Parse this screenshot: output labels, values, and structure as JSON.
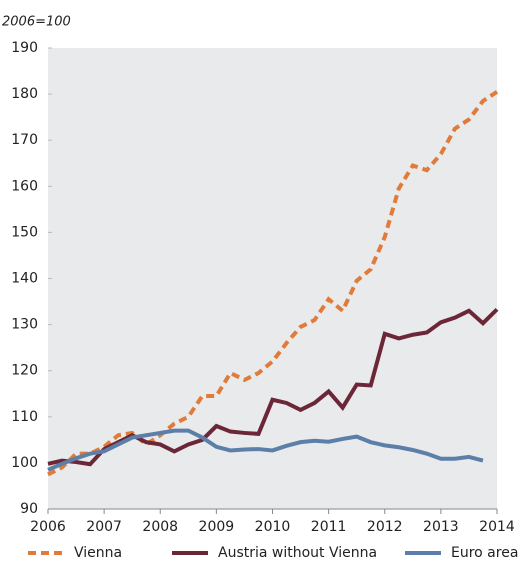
{
  "chart_data": {
    "type": "line",
    "subtitle": "2006=100",
    "x": [
      2006,
      2006.25,
      2006.5,
      2006.75,
      2007,
      2007.25,
      2007.5,
      2007.75,
      2008,
      2008.25,
      2008.5,
      2008.75,
      2009,
      2009.25,
      2009.5,
      2009.75,
      2010,
      2010.25,
      2010.5,
      2010.75,
      2011,
      2011.25,
      2011.5,
      2011.75,
      2012,
      2012.25,
      2012.5,
      2012.75,
      2013,
      2013.25,
      2013.5,
      2013.75,
      2014
    ],
    "series": [
      {
        "name": "Vienna",
        "color": "#e07b39",
        "dashed": true,
        "values": [
          97.5,
          99,
          102,
          102,
          103.5,
          106,
          106.5,
          104,
          106,
          108.5,
          110,
          114.5,
          114.5,
          119.5,
          118,
          119.5,
          122,
          126,
          129.5,
          131,
          135.5,
          133,
          139.5,
          142,
          149,
          159.5,
          164.5,
          163.5,
          167,
          172.5,
          174.5,
          178.5,
          180.5
        ]
      },
      {
        "name": "Austria without Vienna",
        "color": "#6b2737",
        "dashed": false,
        "values": [
          99.8,
          100.5,
          100.2,
          99.7,
          103,
          104.5,
          106,
          104.5,
          104,
          102.5,
          104,
          105,
          108,
          106.8,
          106.5,
          106.3,
          113.7,
          113,
          111.5,
          113,
          115.5,
          112,
          117,
          116.8,
          128,
          127,
          127.8,
          128.3,
          130.5,
          131.5,
          133,
          130.3,
          133.3
        ]
      },
      {
        "name": "Euro area",
        "color": "#5b7fa8",
        "dashed": false,
        "values": [
          98.5,
          99.8,
          101,
          102,
          102.5,
          104,
          105.5,
          106,
          106.5,
          107,
          107,
          105.5,
          103.5,
          102.7,
          102.9,
          103,
          102.7,
          103.7,
          104.5,
          104.8,
          104.6,
          105.2,
          105.7,
          104.5,
          103.8,
          103.4,
          102.8,
          102,
          100.9,
          100.9,
          101.3,
          100.5,
          null
        ]
      }
    ],
    "xlim": [
      2006,
      2014
    ],
    "xticks": [
      2006,
      2007,
      2008,
      2009,
      2010,
      2011,
      2012,
      2013,
      2014
    ],
    "ylim": [
      90,
      190
    ],
    "yticks": [
      90,
      100,
      110,
      120,
      130,
      140,
      150,
      160,
      170,
      180,
      190
    ],
    "grid": false,
    "legend": "bottom",
    "background": "#e9eaeb"
  }
}
